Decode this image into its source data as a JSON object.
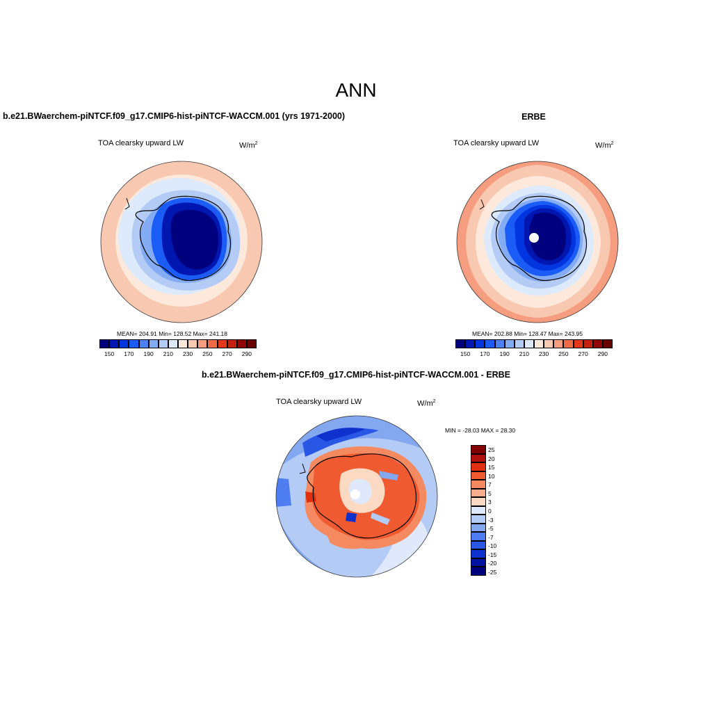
{
  "page": {
    "title": "ANN"
  },
  "panels": {
    "model": {
      "title": "b.e21.BWaerchem-piNTCF.f09_g17.CMIP6-hist-piNTCF-WACCM.001 (yrs 1971-2000)",
      "variable": "TOA clearsky upward LW",
      "units_base": "W/m",
      "units_exp": "2",
      "stats": "MEAN= 204.91  Min= 128.52  Max= 241.18",
      "mean": 204.91,
      "min": 128.52,
      "max": 241.18
    },
    "obs": {
      "title": "ERBE",
      "variable": "TOA clearsky upward LW",
      "units_base": "W/m",
      "units_exp": "2",
      "stats": "MEAN= 202.88  Min= 128.47  Max= 243.95",
      "mean": 202.88,
      "min": 128.47,
      "max": 243.95
    },
    "diff": {
      "title": "b.e21.BWaerchem-piNTCF.f09_g17.CMIP6-hist-piNTCF-WACCM.001 - ERBE",
      "variable": "TOA clearsky upward LW",
      "units_base": "W/m",
      "units_exp": "2",
      "stats": "MIN = -28.03 MAX =  28.30",
      "min": -28.03,
      "max": 28.3
    }
  },
  "colorbars": {
    "abs": {
      "colors": [
        "#00007f",
        "#0016b0",
        "#0035e0",
        "#1a5cf5",
        "#4a82f6",
        "#84acf5",
        "#b4ccf5",
        "#ddeafc",
        "#fce9dc",
        "#f9c8b0",
        "#f59d7e",
        "#f06b48",
        "#e4381c",
        "#c4200f",
        "#900505",
        "#6a0000"
      ],
      "tick_labels": [
        "150",
        "170",
        "190",
        "210",
        "230",
        "250",
        "270",
        "290"
      ]
    },
    "diff": {
      "colors": [
        "#800000",
        "#b01010",
        "#e03010",
        "#f05a30",
        "#f58a60",
        "#f7ae8c",
        "#fbd9c2",
        "#dfe9fb",
        "#b4cbf5",
        "#84a8f0",
        "#4f7ef0",
        "#2a56e6",
        "#0e30cc",
        "#00139e",
        "#00007a"
      ],
      "tick_labels": [
        "25",
        "20",
        "15",
        "10",
        "7",
        "5",
        "3",
        "0",
        "-3",
        "-5",
        "-7",
        "-10",
        "-15",
        "-20",
        "-25"
      ]
    }
  }
}
